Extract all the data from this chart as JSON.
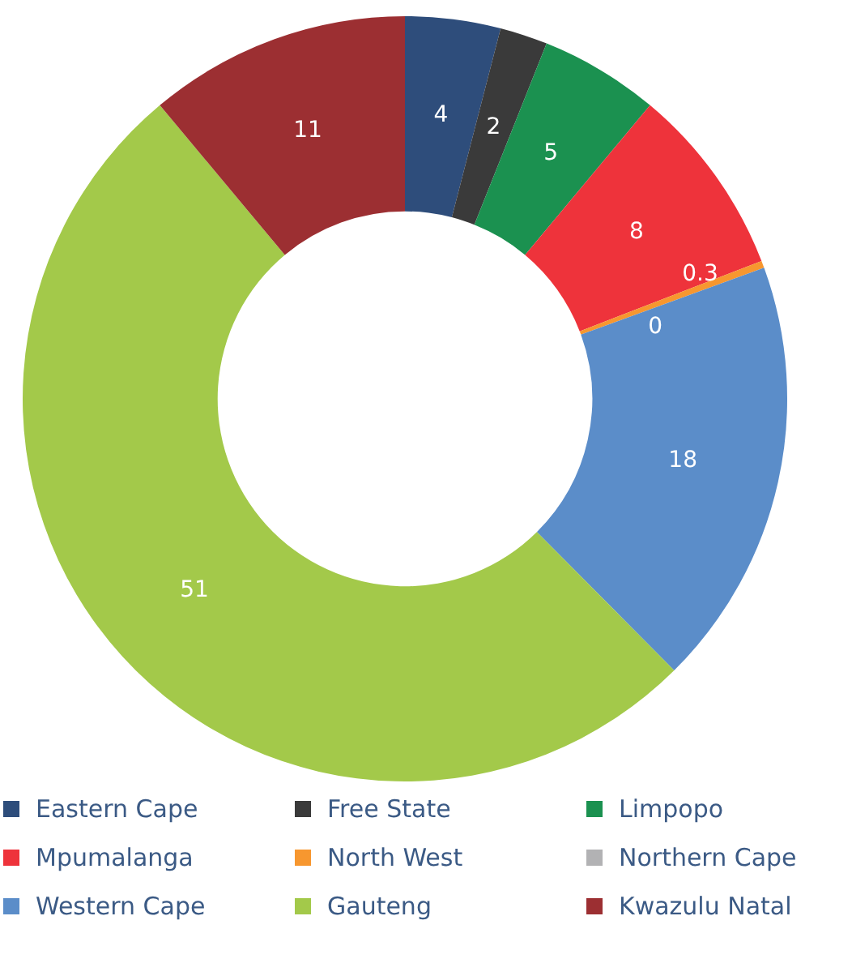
{
  "chart_data": {
    "type": "donut",
    "categories": [
      "Eastern Cape",
      "Free State",
      "Limpopo",
      "Mpumalanga",
      "North West",
      "Northern Cape",
      "Western Cape",
      "Gauteng",
      "Kwazulu Natal"
    ],
    "values": [
      4,
      2,
      5,
      8,
      0.3,
      0,
      18,
      51,
      11
    ],
    "colors": [
      "#2e4d7b",
      "#3a3a3a",
      "#1b9150",
      "#ee333b",
      "#f7972f",
      "#b2b2b4",
      "#5b8dc9",
      "#a3c94a",
      "#9c2f32"
    ],
    "value_labels": [
      "4",
      "2",
      "5",
      "8",
      "0.3",
      "0",
      "18",
      "51",
      "11"
    ],
    "legend": "bottom"
  }
}
